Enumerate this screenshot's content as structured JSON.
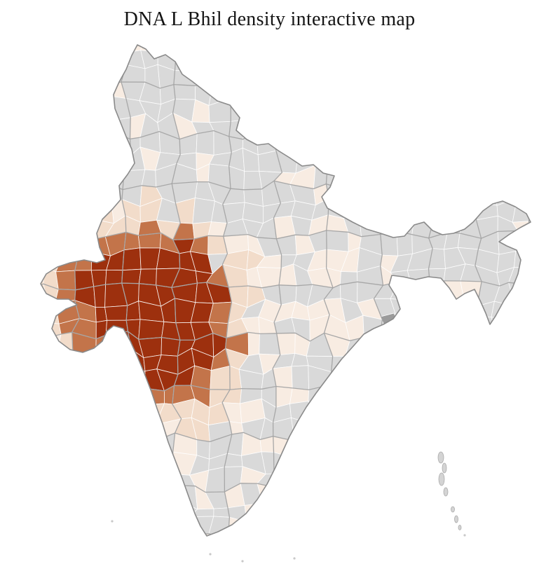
{
  "title": "DNA L Bhil density interactive map",
  "map": {
    "colors": {
      "background": "#ffffff",
      "no_data": "#d9d9d9",
      "very_low": "#f8ece2",
      "low": "#f2dcca",
      "medium": "#c3744a",
      "high": "#9d300e",
      "district_border": "#ffffff",
      "state_border": "#a2a2a2",
      "coast_border": "#8a8a8a",
      "island": "#d4d4d4",
      "dark_gray_district": "#9b9b9b"
    }
  }
}
